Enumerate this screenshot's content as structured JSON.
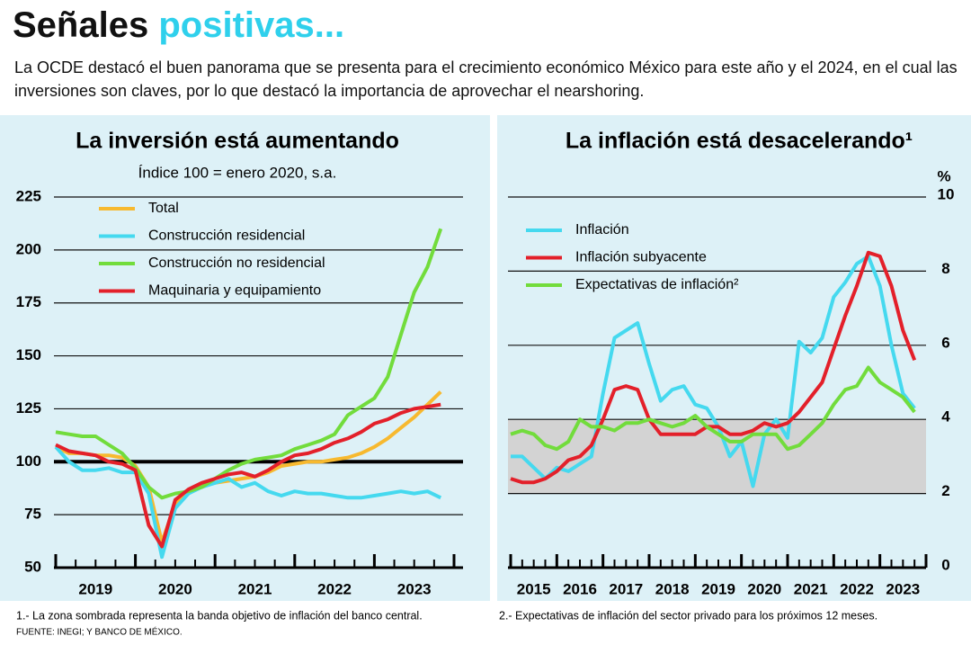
{
  "header": {
    "title_black": "Señales",
    "title_colored": "positivas...",
    "subtitle": "La OCDE destacó el buen panorama que se presenta para el crecimiento económico México para este año y el 2024, en el cual las inversiones son claves, por lo que destacó la importancia de aprovechar el nearshoring."
  },
  "footnotes": {
    "note1": "1.- La zona sombrada representa la banda objetivo de inflación del banco central.",
    "note2": "2.- Expectativas de inflación del sector privado para los próximos 12 meses.",
    "source": "FUENTE: INEGI; Y BANCO DE MÉXICO."
  },
  "chart_data": [
    {
      "type": "line",
      "title": "La inversión está aumentando",
      "subtitle": "Índice 100 = enero 2020, s.a.",
      "x": [
        2019,
        2019.167,
        2019.333,
        2019.5,
        2019.667,
        2019.833,
        2020,
        2020.167,
        2020.333,
        2020.5,
        2020.667,
        2020.833,
        2021,
        2021.167,
        2021.333,
        2021.5,
        2021.667,
        2021.833,
        2022,
        2022.167,
        2022.333,
        2022.5,
        2022.667,
        2022.833,
        2023,
        2023.167,
        2023.333,
        2023.5,
        2023.667,
        2023.833
      ],
      "series": [
        {
          "name": "Total",
          "color": "#f7b92f",
          "values": [
            107,
            104,
            104,
            103,
            103,
            102,
            98,
            88,
            62,
            80,
            86,
            89,
            90,
            91,
            92,
            93,
            95,
            98,
            99,
            100,
            100,
            101,
            102,
            104,
            107,
            111,
            116,
            121,
            127,
            133
          ]
        },
        {
          "name": "Construcción residencial",
          "color": "#45d9ef",
          "values": [
            107,
            100,
            96,
            96,
            97,
            95,
            95,
            85,
            55,
            78,
            85,
            88,
            90,
            92,
            88,
            90,
            86,
            84,
            86,
            85,
            85,
            84,
            83,
            83,
            84,
            85,
            86,
            85,
            86,
            83
          ]
        },
        {
          "name": "Construcción no residencial",
          "color": "#72dc3c",
          "values": [
            114,
            113,
            112,
            112,
            108,
            104,
            97,
            88,
            83,
            85,
            86,
            88,
            92,
            96,
            99,
            101,
            102,
            103,
            106,
            108,
            110,
            113,
            122,
            126,
            130,
            140,
            160,
            180,
            192,
            210
          ]
        },
        {
          "name": "Maquinaria y equipamiento",
          "color": "#e3202a",
          "values": [
            108,
            105,
            104,
            103,
            100,
            99,
            96,
            70,
            60,
            82,
            87,
            90,
            92,
            94,
            95,
            93,
            96,
            100,
            103,
            104,
            106,
            109,
            111,
            114,
            118,
            120,
            123,
            125,
            126,
            127
          ]
        }
      ],
      "xlim": [
        2019,
        2024
      ],
      "xticks": [
        {
          "value": 2019.5,
          "label": "2019"
        },
        {
          "value": 2020.5,
          "label": "2020"
        },
        {
          "value": 2021.5,
          "label": "2021"
        },
        {
          "value": 2022.5,
          "label": "2022"
        },
        {
          "value": 2023.5,
          "label": "2023"
        }
      ],
      "ylim": [
        50,
        225
      ],
      "yticks": [
        50,
        75,
        100,
        125,
        150,
        175,
        200,
        225
      ],
      "reference_line": 100,
      "grid": true,
      "legend": "upper left"
    },
    {
      "type": "line",
      "title": "La inflación está desacelerando¹",
      "y_unit": "%",
      "x": [
        2015,
        2015.25,
        2015.5,
        2015.75,
        2016,
        2016.25,
        2016.5,
        2016.75,
        2017,
        2017.25,
        2017.5,
        2017.75,
        2018,
        2018.25,
        2018.5,
        2018.75,
        2019,
        2019.25,
        2019.5,
        2019.75,
        2020,
        2020.25,
        2020.5,
        2020.75,
        2021,
        2021.25,
        2021.5,
        2021.75,
        2022,
        2022.25,
        2022.5,
        2022.75,
        2023,
        2023.25,
        2023.5,
        2023.75
      ],
      "series": [
        {
          "name": "Inflación",
          "color": "#45d9ef",
          "values": [
            3.0,
            3.0,
            2.7,
            2.4,
            2.7,
            2.6,
            2.8,
            3.0,
            4.7,
            6.2,
            6.4,
            6.6,
            5.5,
            4.5,
            4.8,
            4.9,
            4.4,
            4.3,
            3.8,
            3.0,
            3.4,
            2.2,
            3.6,
            4.0,
            3.5,
            6.1,
            5.8,
            6.2,
            7.3,
            7.7,
            8.2,
            8.4,
            7.6,
            6.0,
            4.7,
            4.3
          ]
        },
        {
          "name": "Inflación subyacente",
          "color": "#e3202a",
          "values": [
            2.4,
            2.3,
            2.3,
            2.4,
            2.6,
            2.9,
            3.0,
            3.3,
            4.0,
            4.8,
            4.9,
            4.8,
            4.0,
            3.6,
            3.6,
            3.6,
            3.6,
            3.8,
            3.8,
            3.6,
            3.6,
            3.7,
            3.9,
            3.8,
            3.9,
            4.2,
            4.6,
            5.0,
            5.9,
            6.8,
            7.6,
            8.5,
            8.4,
            7.6,
            6.4,
            5.6
          ]
        },
        {
          "name": "Expectativas de inflación²",
          "color": "#72dc3c",
          "values": [
            3.6,
            3.7,
            3.6,
            3.3,
            3.2,
            3.4,
            4.0,
            3.8,
            3.8,
            3.7,
            3.9,
            3.9,
            4.0,
            3.9,
            3.8,
            3.9,
            4.1,
            3.8,
            3.6,
            3.4,
            3.4,
            3.6,
            3.6,
            3.6,
            3.2,
            3.3,
            3.6,
            3.9,
            4.4,
            4.8,
            4.9,
            5.4,
            5.0,
            4.8,
            4.6,
            4.2
          ]
        }
      ],
      "xlim": [
        2015,
        2024
      ],
      "xticks": [
        {
          "value": 2015.5,
          "label": "2015"
        },
        {
          "value": 2016.5,
          "label": "2016"
        },
        {
          "value": 2017.5,
          "label": "2017"
        },
        {
          "value": 2018.5,
          "label": "2018"
        },
        {
          "value": 2019.5,
          "label": "2019"
        },
        {
          "value": 2020.5,
          "label": "2020"
        },
        {
          "value": 2021.5,
          "label": "2021"
        },
        {
          "value": 2022.5,
          "label": "2022"
        },
        {
          "value": 2023.5,
          "label": "2023"
        }
      ],
      "ylim": [
        0,
        10
      ],
      "yticks": [
        0,
        2,
        4,
        6,
        8,
        10
      ],
      "shaded_band": [
        2,
        4
      ],
      "grid": true,
      "legend": "upper left"
    }
  ]
}
